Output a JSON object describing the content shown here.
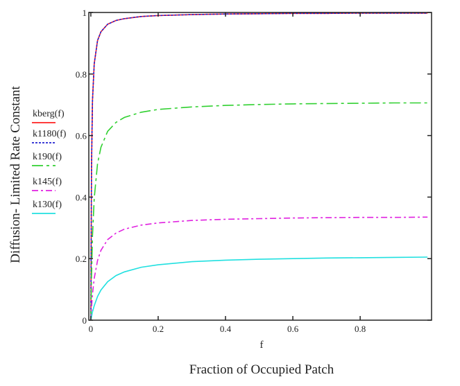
{
  "chart_data": {
    "type": "line",
    "title": "",
    "xlabel": "f",
    "xlabel2": "Fraction of Occupied Patch",
    "ylabel": "Diffusion- Limited Rate Constant",
    "xlim": [
      -0.006,
      1.012
    ],
    "ylim": [
      0,
      1
    ],
    "x_ticks": [
      0,
      0.2,
      0.4,
      0.6,
      0.8
    ],
    "x_tick_labels": [
      "0",
      "0.2",
      "0.4",
      "0.6",
      "0.8"
    ],
    "y_ticks": [
      0,
      0.2,
      0.4,
      0.6,
      0.8,
      1
    ],
    "y_tick_labels": [
      "0",
      "0.2",
      "0.4",
      "0.6",
      "0.8",
      "1"
    ],
    "grid": false,
    "legend_position": "left",
    "x": [
      0,
      0.002,
      0.005,
      0.01,
      0.02,
      0.03,
      0.05,
      0.075,
      0.1,
      0.15,
      0.2,
      0.3,
      0.4,
      0.5,
      0.6,
      0.7,
      0.8,
      0.9,
      1.0
    ],
    "series": [
      {
        "name": "kberg(f)",
        "color": "#ff2020",
        "dash": "",
        "values": [
          0,
          0.5,
          0.714,
          0.833,
          0.909,
          0.9375,
          0.962,
          0.974,
          0.98,
          0.987,
          0.99,
          0.993,
          0.995,
          0.996,
          0.997,
          0.997,
          0.998,
          0.998,
          0.998
        ]
      },
      {
        "name": "k1180(f)",
        "color": "#2020d0",
        "dash": "3,2",
        "values": [
          0,
          0.5,
          0.714,
          0.833,
          0.909,
          0.9375,
          0.962,
          0.974,
          0.98,
          0.987,
          0.99,
          0.993,
          0.995,
          0.996,
          0.997,
          0.997,
          0.998,
          0.998,
          0.998
        ]
      },
      {
        "name": "k190(f)",
        "color": "#30d030",
        "dash": "16,5,4,5",
        "values": [
          0,
          0.142,
          0.274,
          0.396,
          0.509,
          0.562,
          0.614,
          0.643,
          0.659,
          0.676,
          0.685,
          0.693,
          0.698,
          0.701,
          0.703,
          0.704,
          0.705,
          0.706,
          0.706
        ]
      },
      {
        "name": "k145(f)",
        "color": "#e020e0",
        "dash": "9,4,3,4",
        "values": [
          0,
          0.04,
          0.085,
          0.136,
          0.194,
          0.227,
          0.262,
          0.283,
          0.296,
          0.309,
          0.316,
          0.324,
          0.328,
          0.33,
          0.332,
          0.333,
          0.334,
          0.334,
          0.335
        ]
      },
      {
        "name": "k130(f)",
        "color": "#20e0e0",
        "dash": "",
        "values": [
          0,
          0.011,
          0.027,
          0.047,
          0.077,
          0.098,
          0.125,
          0.145,
          0.157,
          0.172,
          0.18,
          0.19,
          0.195,
          0.198,
          0.2,
          0.202,
          0.203,
          0.204,
          0.205
        ]
      }
    ]
  }
}
